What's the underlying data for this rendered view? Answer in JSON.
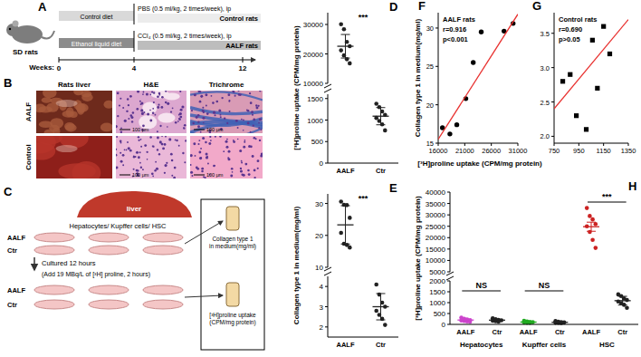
{
  "chart_data": [
    {
      "type": "strip",
      "title": "D",
      "ylabel": "[³H]proline uptake (CPM/mg protein)",
      "categories": [
        "AALF",
        "Ctr"
      ],
      "colors": [
        "#222222",
        "#222222"
      ],
      "points": [
        [
          30100,
          28400,
          24100,
          22600,
          21200,
          19500,
          18200,
          16800
        ],
        [
          1380,
          1300,
          1200,
          1120,
          1050,
          980,
          900,
          760
        ]
      ],
      "mean": [
        22600,
        1090
      ],
      "error": [
        4000,
        200
      ],
      "ylim": [
        10000,
        34000
      ],
      "yticks": [
        10000,
        20000,
        30000
      ],
      "annotations": [
        "***"
      ],
      "tick_labels": "y"
    },
    {
      "type": "strip",
      "categories": [
        "AALF",
        "Ctr"
      ],
      "colors": [
        "#222222",
        "#222222"
      ],
      "points": [
        [
          30100,
          28400,
          24100,
          22600,
          21200,
          19500,
          18200,
          16800
        ],
        [
          1380,
          1300,
          1200,
          1120,
          1050,
          980,
          900,
          760
        ]
      ],
      "mean": [
        22600,
        1090
      ],
      "error": [
        4000,
        200
      ],
      "ylim": [
        0,
        1600
      ],
      "yticks": [
        0,
        500,
        1000,
        1500
      ]
    },
    {
      "type": "strip",
      "title": "E",
      "ylabel": "Collagen type 1 in medium(mg/ml)",
      "categories": [
        "AALF",
        "Ctr"
      ],
      "colors": [
        "#222222",
        "#222222"
      ],
      "points": [
        [
          30.6,
          29.6,
          29.5,
          25.5,
          20.8,
          17.4,
          17.0,
          16.2
        ],
        [
          4.1,
          3.6,
          3.2,
          3.0,
          2.8,
          2.6,
          2.4,
          2.1
        ]
      ],
      "mean": [
        23.3,
        3.0
      ],
      "error": [
        6.0,
        0.65
      ],
      "ylim": [
        10,
        33
      ],
      "yticks": [
        10,
        20,
        30
      ],
      "annotations": [
        "***"
      ],
      "tick_labels": "y"
    },
    {
      "type": "strip",
      "categories": [
        "AALF",
        "Ctr"
      ],
      "colors": [
        "#222222",
        "#222222"
      ],
      "points": [
        [
          30.6,
          29.6,
          29.5,
          25.5,
          20.8,
          17.4,
          17.0,
          16.2
        ],
        [
          4.1,
          3.6,
          3.2,
          3.0,
          2.8,
          2.6,
          2.4,
          2.1
        ]
      ],
      "mean": [
        23.3,
        3.0
      ],
      "error": [
        6.0,
        0.65
      ],
      "ylim": [
        1.5,
        4.5
      ],
      "yticks": [
        2,
        3,
        4
      ]
    },
    {
      "type": "scatter",
      "title": "F",
      "xlabel": "[³H]proline uptake (CPM/mg protein)",
      "ylabel": "Collagen type 1 in medium(mg/ml)",
      "annotations": [
        "AALF rats",
        "r=0.916",
        "p<0.001"
      ],
      "xlim": [
        16000,
        31000
      ],
      "xticks": [
        16000,
        21000,
        26000,
        31000
      ],
      "ylim": [
        15,
        32
      ],
      "yticks": [
        15,
        20,
        25,
        30
      ],
      "series": [
        {
          "type": "scatter",
          "marker": "circle",
          "color": "#000000",
          "x": [
            16800,
            18200,
            19500,
            21200,
            22600,
            24100,
            28400,
            30100
          ],
          "values": [
            17.0,
            16.2,
            17.4,
            20.8,
            25.5,
            29.5,
            29.6,
            30.6
          ]
        },
        {
          "type": "line",
          "color": "#e8312f",
          "x": [
            16000,
            31000
          ],
          "values": [
            15.5,
            31.8
          ]
        }
      ]
    },
    {
      "type": "scatter",
      "title": "G",
      "annotations": [
        "Control rats",
        "r=0.690",
        "p>0.05"
      ],
      "xlim": [
        750,
        1350
      ],
      "xticks": [
        750,
        950,
        1150,
        1350
      ],
      "ylim": [
        1.9,
        3.8
      ],
      "yticks": [
        {
          "value": 2,
          "label": "2.0"
        },
        2.5,
        {
          "value": 3,
          "label": "3.0"
        },
        3.5
      ],
      "series": [
        {
          "type": "scatter",
          "marker": "square",
          "color": "#000000",
          "x": [
            820,
            880,
            930,
            1010,
            1060,
            1100,
            1150,
            1200
          ],
          "values": [
            2.8,
            2.9,
            2.3,
            2.1,
            3.4,
            2.7,
            3.6,
            3.2
          ]
        },
        {
          "type": "line",
          "color": "#e8312f",
          "x": [
            750,
            1350
          ],
          "values": [
            2.4,
            3.7
          ]
        }
      ]
    },
    {
      "type": "strip",
      "title": "H",
      "ylabel": "[³H]proline uptake (CPM/mg protein)",
      "categories": [
        "AALF",
        "Ctr",
        "AALF",
        "Ctr",
        "AALF",
        "Ctr"
      ],
      "colors": [
        "#cc44cc",
        "#222222",
        "#22aa22",
        "#222222",
        "#cc2222",
        "#222222"
      ],
      "points": [
        [
          310,
          260,
          230,
          200,
          180,
          160,
          140,
          120
        ],
        [
          280,
          240,
          210,
          190,
          170,
          150,
          130
        ],
        [
          160,
          130,
          110,
          100,
          90,
          80,
          70
        ],
        [
          150,
          120,
          100,
          90,
          80,
          70,
          60
        ],
        [
          33000,
          29500,
          28000,
          26000,
          25000,
          22500,
          19000,
          15500
        ],
        [
          1380,
          1300,
          1200,
          1120,
          1050,
          980,
          900,
          760
        ]
      ],
      "mean": [
        200,
        195,
        106,
        96,
        24800,
        1090
      ],
      "error": [
        25,
        20,
        12,
        12,
        2000,
        200
      ],
      "ylim": [
        5000,
        40000
      ],
      "yticks": [
        5000,
        10000,
        15000,
        20000,
        25000,
        30000,
        35000,
        40000
      ],
      "annotations": [
        null,
        null,
        "***"
      ],
      "tick_labels": "y"
    },
    {
      "type": "strip",
      "categories": [
        "AALF",
        "Ctr",
        "AALF",
        "Ctr",
        "AALF",
        "Ctr"
      ],
      "groups": [
        "Hepatocytes",
        "Kupffer cells",
        "HSC"
      ],
      "colors": [
        "#cc44cc",
        "#222222",
        "#22aa22",
        "#222222",
        "#cc2222",
        "#222222"
      ],
      "points": [
        [
          310,
          260,
          230,
          200,
          180,
          160,
          140,
          120
        ],
        [
          280,
          240,
          210,
          190,
          170,
          150,
          130
        ],
        [
          160,
          130,
          110,
          100,
          90,
          80,
          70
        ],
        [
          150,
          120,
          100,
          90,
          80,
          70,
          60
        ],
        [
          33000,
          29500,
          28000,
          26000,
          25000,
          22500,
          19000,
          15500
        ],
        [
          1380,
          1300,
          1200,
          1120,
          1050,
          980,
          900,
          760
        ]
      ],
      "mean": [
        200,
        195,
        106,
        96,
        24800,
        1090
      ],
      "error": [
        25,
        20,
        12,
        12,
        2000,
        200
      ],
      "ylim": [
        0,
        2000
      ],
      "yticks": [
        0,
        500,
        1000,
        1500,
        2000
      ],
      "annotations": [
        "NS",
        "NS",
        null
      ]
    }
  ],
  "diagram": {
    "panel_a": {
      "label": "A",
      "animal": "SD rats",
      "weeks_label": "Weeks:",
      "weeks": [
        0,
        4,
        12
      ],
      "rows": [
        {
          "diet": "Control diet",
          "treatment": "PBS (0.5 ml/kg, 2 times/week), ip",
          "group": "Control rats"
        },
        {
          "diet": "Ethanol liquid diet",
          "treatment": "CCl₄ (0.5 ml/kg, 2 times/week), ip",
          "group": "AALF rats"
        }
      ]
    },
    "panel_b": {
      "label": "B",
      "columns": [
        "Rats liver",
        "H&E",
        "Trichrome"
      ],
      "rows": [
        "AALF",
        "Control"
      ],
      "scale_bar": "100 μm"
    },
    "panel_c": {
      "label": "C",
      "organ": "liver",
      "cells": "Hepatocytes/ Kupffer cells/ HSC",
      "groups": [
        "AALF",
        "Ctr"
      ],
      "step1": "Cultured 12 hours",
      "step2": "(Add 19 MBq/L of [³H] proline, 2 hours)",
      "readouts": [
        [
          "Collagen type 1",
          "in medium(mg/ml)"
        ],
        [
          "[³H]proline uptake",
          "(CPM/mg protein)"
        ]
      ]
    }
  }
}
